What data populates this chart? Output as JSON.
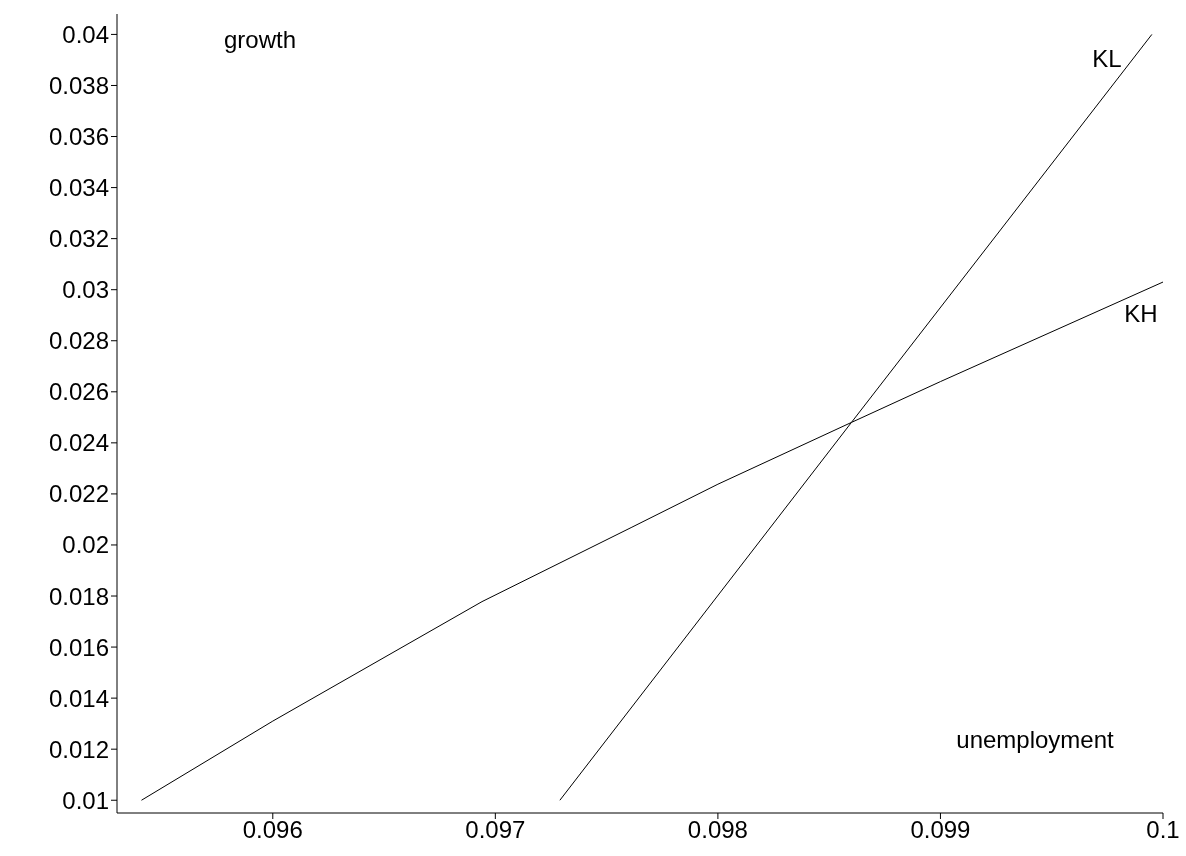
{
  "chart_data": {
    "type": "line",
    "xlabel": "unemployment",
    "ylabel": "growth",
    "xlim": [
      0.0953,
      0.1
    ],
    "xticks": [
      0.096,
      0.097,
      0.098,
      0.099,
      0.1
    ],
    "ylim": [
      0.0095,
      0.0408
    ],
    "yticks": [
      0.01,
      0.012,
      0.014,
      0.016,
      0.018,
      0.02,
      0.022,
      0.024,
      0.026,
      0.028,
      0.03,
      0.032,
      0.034,
      0.036,
      0.038,
      0.04
    ],
    "grid": false,
    "legend": false,
    "marker": "none",
    "line_style": "solid",
    "series": [
      {
        "name": "KL",
        "color": "#000000",
        "x": [
          0.09729,
          0.0986,
          0.09995
        ],
        "values": [
          0.01,
          0.0248,
          0.04
        ]
      },
      {
        "name": "KH",
        "color": "#000000",
        "x": [
          0.09541,
          0.096,
          0.09694,
          0.09761,
          0.098,
          0.0986,
          0.099,
          0.1
        ],
        "values": [
          0.01,
          0.0131,
          0.01778,
          0.02068,
          0.02238,
          0.0248,
          0.0264,
          0.0303
        ]
      }
    ]
  }
}
